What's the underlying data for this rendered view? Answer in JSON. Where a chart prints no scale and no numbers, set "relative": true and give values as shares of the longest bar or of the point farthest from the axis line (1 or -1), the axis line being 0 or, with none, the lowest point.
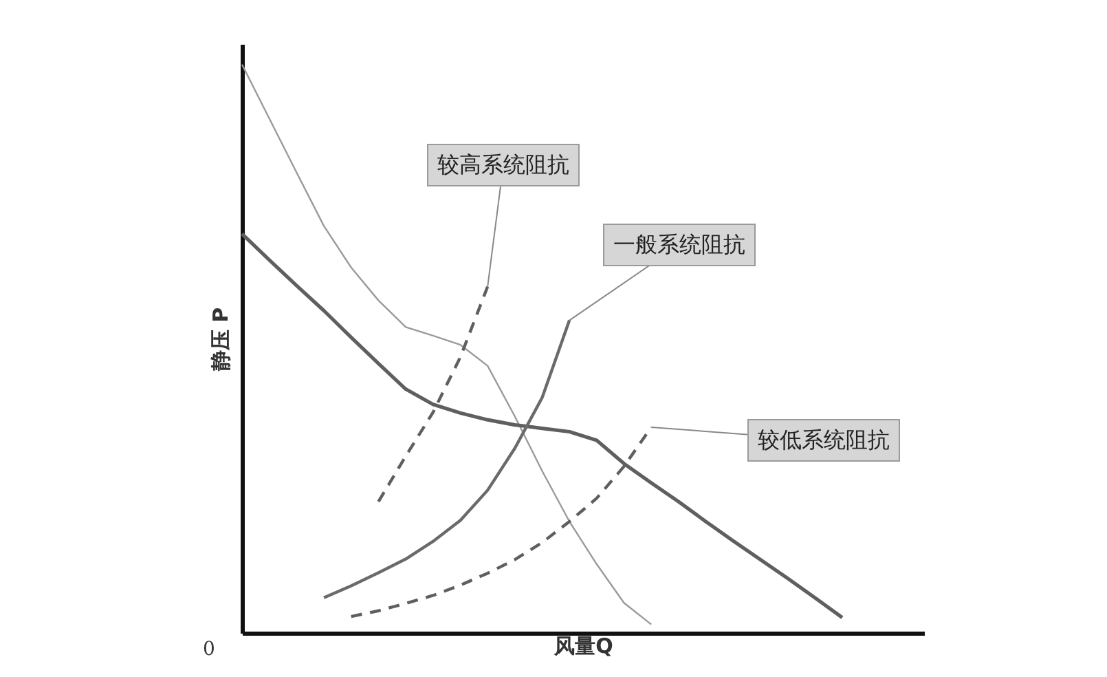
{
  "chart_data": {
    "type": "line",
    "relative": true,
    "xlabel": "风量Q",
    "ylabel": "静压 P",
    "categories": [
      null,
      null,
      null,
      null,
      null,
      null,
      null,
      null,
      null,
      null,
      null,
      null,
      null,
      null,
      null,
      null,
      null,
      null,
      null,
      null,
      null,
      null,
      null,
      null,
      null
    ],
    "series": [
      {
        "color": "#9a9a9a",
        "line_style": "solid",
        "values": [
          1.0,
          0.905,
          0.81,
          0.716,
          0.643,
          0.585,
          0.538,
          0.523,
          0.507,
          0.47,
          0.381,
          0.285,
          0.196,
          0.121,
          0.053,
          0.015,
          null,
          null,
          null,
          null,
          null,
          null,
          null,
          null,
          null
        ]
      },
      {
        "color": "#5f5f5f",
        "line_style": "solid",
        "values": [
          0.702,
          0.656,
          0.611,
          0.567,
          0.52,
          0.474,
          0.429,
          0.402,
          0.387,
          0.375,
          0.366,
          0.36,
          0.354,
          0.339,
          0.298,
          0.264,
          0.231,
          0.196,
          0.162,
          0.129,
          0.096,
          0.062,
          0.027,
          null,
          null
        ]
      },
      {
        "color": "#5f5f5f",
        "line_style": "dashed",
        "values": [
          null,
          null,
          null,
          null,
          null,
          0.231,
          0.311,
          0.388,
          0.485,
          0.609,
          null,
          null,
          null,
          null,
          null,
          null,
          null,
          null,
          null,
          null,
          null,
          null,
          null,
          null,
          null
        ]
      },
      {
        "color": "#6a6a6a",
        "line_style": "solid",
        "values": [
          null,
          null,
          null,
          0.062,
          0.083,
          0.106,
          0.13,
          0.161,
          0.198,
          0.251,
          0.325,
          0.414,
          0.55,
          null,
          null,
          null,
          null,
          null,
          null,
          null,
          null,
          null,
          null,
          null,
          null
        ]
      },
      {
        "color": "#5f5f5f",
        "line_style": "dashed",
        "values": [
          null,
          null,
          null,
          null,
          0.029,
          0.039,
          0.052,
          0.066,
          0.084,
          0.105,
          0.129,
          0.159,
          0.196,
          0.237,
          0.293,
          0.362,
          null,
          null,
          null,
          null,
          null,
          null,
          null,
          null,
          null
        ]
      }
    ],
    "annotations": [
      "较高系统阻抗",
      "一般系统阻抗",
      "较低系统阻抗",
      "0"
    ]
  }
}
